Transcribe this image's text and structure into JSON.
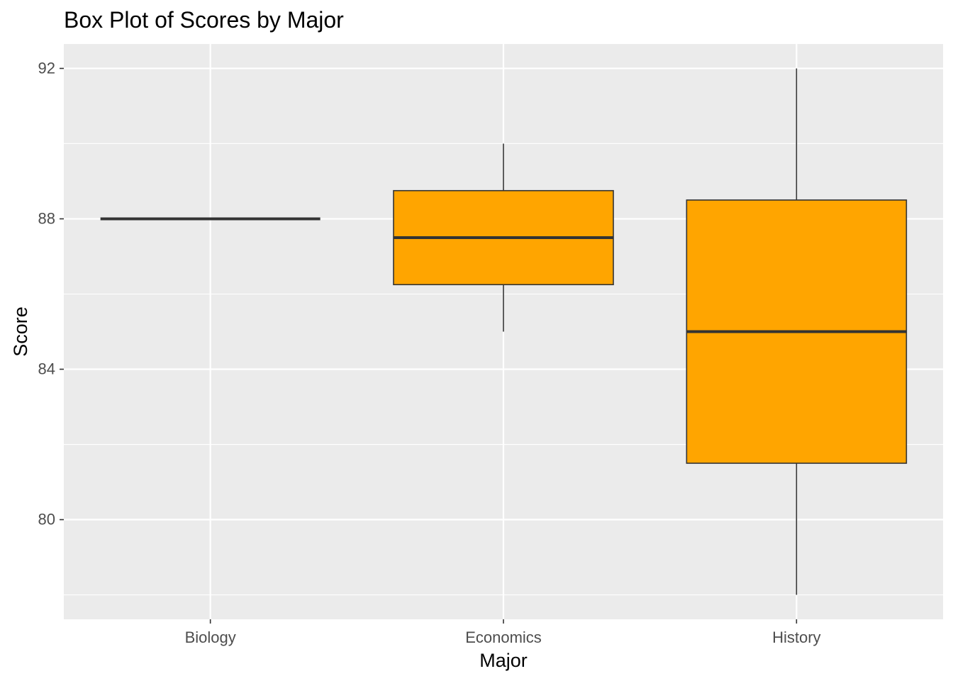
{
  "chart_data": {
    "type": "boxplot",
    "title": "Box Plot of Scores by Major",
    "xlabel": "Major",
    "ylabel": "Score",
    "categories": [
      "Biology",
      "Economics",
      "History"
    ],
    "boxes": [
      {
        "category": "Biology",
        "min": 88,
        "q1": 88,
        "median": 88,
        "q3": 88,
        "max": 88
      },
      {
        "category": "Economics",
        "min": 85,
        "q1": 86.25,
        "median": 87.5,
        "q3": 88.75,
        "max": 90
      },
      {
        "category": "History",
        "min": 78,
        "q1": 81.5,
        "median": 85,
        "q3": 88.5,
        "max": 92
      }
    ],
    "ylim": [
      77.35,
      92.65
    ],
    "yticks": [
      80,
      84,
      88,
      92
    ],
    "y_minor_ticks": [
      78,
      82,
      86,
      90
    ],
    "grid": true,
    "legend": "none",
    "colors": {
      "panel_bg": "#EBEBEB",
      "grid": "#FFFFFF",
      "box_fill": "#FFA500",
      "box_stroke": "#333333"
    }
  }
}
